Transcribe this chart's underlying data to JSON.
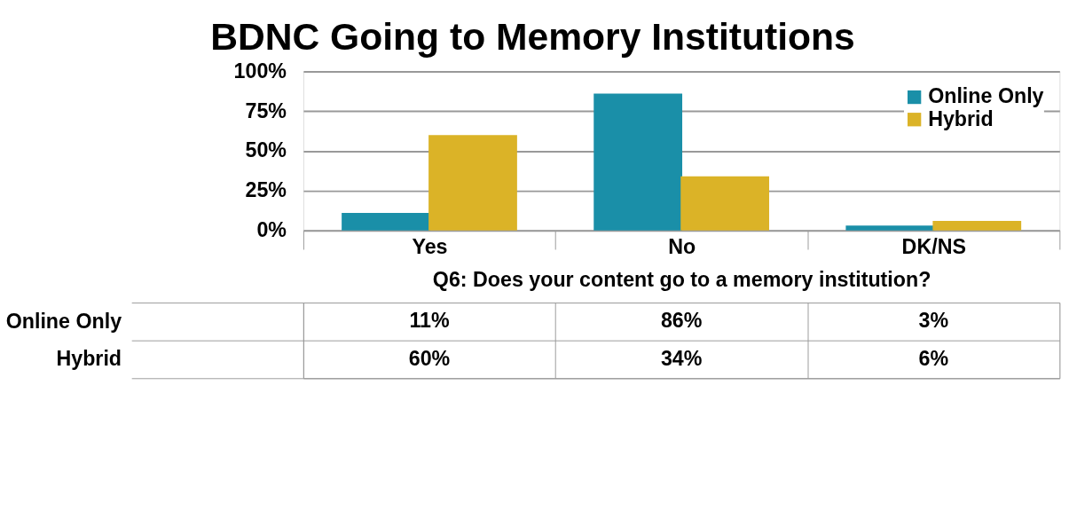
{
  "chart_data": {
    "type": "bar",
    "title": "BDNC Going to Memory Institutions",
    "xlabel": "Q6: Does your content go to a memory institution?",
    "categories": [
      "Yes",
      "No",
      "DK/NS"
    ],
    "series": [
      {
        "name": "Online Only",
        "color": "#1a8fa8",
        "values": [
          11,
          86,
          3
        ],
        "value_labels": [
          "11%",
          "86%",
          "3%"
        ]
      },
      {
        "name": "Hybrid",
        "color": "#dbb327",
        "values": [
          60,
          34,
          6
        ],
        "value_labels": [
          "60%",
          "34%",
          "6%"
        ]
      }
    ],
    "ylim": [
      0,
      100
    ],
    "yticks": [
      {
        "value": 0,
        "label": "0%"
      },
      {
        "value": 25,
        "label": "25%"
      },
      {
        "value": 50,
        "label": "50%"
      },
      {
        "value": 75,
        "label": "75%"
      },
      {
        "value": 100,
        "label": "100%"
      }
    ],
    "grid": "y",
    "legend": "top right"
  }
}
